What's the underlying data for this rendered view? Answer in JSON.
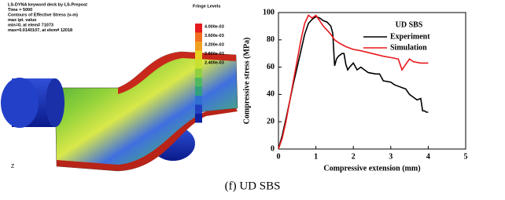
{
  "simulation": {
    "header": [
      "LS-DYNA keyword deck by LS-Prepost",
      "Time =      5000",
      "Contours of Effective Stress (v-m)",
      "max ipt. value",
      "min=0, at elem# 71073",
      "max=0.0140107, at elem# 12018"
    ],
    "fringe_title": "Fringe Levels",
    "fringe_levels": [
      "4.000e-03",
      "3.600e-03",
      "3.200e-03",
      "2.800e-03",
      "2.400e-03"
    ]
  },
  "chart_data": {
    "type": "line",
    "xlabel": "Compressive extension (mm)",
    "ylabel": "Compressive stress (MPa)",
    "xlim": [
      0,
      5
    ],
    "xticks": [
      0,
      1,
      2,
      3,
      4,
      5
    ],
    "ylim": [
      0,
      100
    ],
    "yticks": [
      0,
      20,
      40,
      60,
      80,
      100
    ],
    "legend_title": "UD SBS",
    "legend": "upper right",
    "series": [
      {
        "name": "Experiment",
        "color": "#000000",
        "x": [
          0,
          0.1,
          0.2,
          0.3,
          0.4,
          0.5,
          0.6,
          0.7,
          0.8,
          0.9,
          1.0,
          1.1,
          1.2,
          1.3,
          1.4,
          1.45,
          1.5,
          1.55,
          1.6,
          1.7,
          1.75,
          1.8,
          1.85,
          1.9,
          2.0,
          2.1,
          2.2,
          2.4,
          2.6,
          2.7,
          2.8,
          3.0,
          3.1,
          3.3,
          3.4,
          3.5,
          3.6,
          3.7,
          3.8,
          3.85,
          3.9,
          3.95,
          4.0
        ],
        "values": [
          0,
          10,
          22,
          35,
          48,
          60,
          72,
          84,
          92,
          95,
          97,
          96,
          94,
          93,
          90,
          85,
          61,
          66,
          68,
          70,
          70,
          62,
          58,
          60,
          63,
          58,
          60,
          56,
          55,
          55,
          50,
          49,
          47,
          45,
          44,
          40,
          38,
          36,
          37,
          28,
          28,
          27,
          27
        ]
      },
      {
        "name": "Simulation",
        "color": "#e8191e",
        "x": [
          0,
          0.1,
          0.2,
          0.3,
          0.4,
          0.5,
          0.6,
          0.7,
          0.8,
          0.9,
          1.0,
          1.1,
          1.2,
          1.3,
          1.4,
          1.5,
          1.6,
          1.8,
          2.0,
          2.2,
          2.5,
          2.8,
          3.0,
          3.2,
          3.3,
          3.4,
          3.5,
          3.6,
          3.8,
          4.0
        ],
        "values": [
          0,
          8,
          20,
          35,
          50,
          65,
          80,
          92,
          98,
          96,
          98,
          94,
          90,
          87,
          84,
          80,
          78,
          75,
          73,
          72,
          70,
          68,
          67,
          66,
          58,
          62,
          66,
          64,
          63,
          63
        ]
      }
    ]
  },
  "caption": "(f) UD SBS"
}
